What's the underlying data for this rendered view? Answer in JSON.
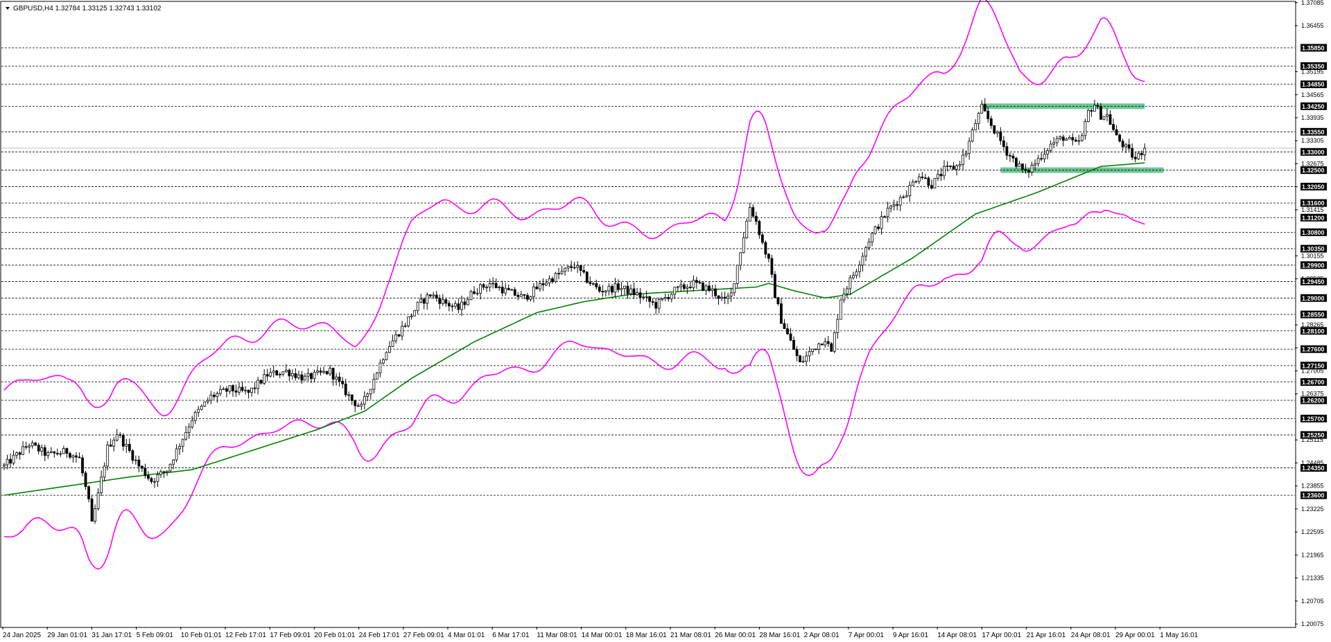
{
  "header": {
    "symbol_info": "GBPUSD,H4  1.32784 1.33125 1.32743 1.33102"
  },
  "colors": {
    "candles": "#000000",
    "bollinger": "#ff00ff",
    "moving_average": "#008000",
    "zone_fill": "#3cb371",
    "level_line": "#000000",
    "level_label_bg": "#000000",
    "current_price_line": "#c0c0c0"
  },
  "chart_data": {
    "type": "candlestick",
    "symbol": "GBPUSD",
    "timeframe": "H4",
    "ohlc_last": {
      "open": 1.32784,
      "high": 1.33125,
      "low": 1.32743,
      "close": 1.33102
    },
    "ylim": [
      1.2,
      1.3712
    ],
    "y_ticks": [
      "1.37085",
      "1.36455",
      "1.35195",
      "1.34565",
      "1.33935",
      "1.33305",
      "1.32675",
      "1.32045",
      "1.31415",
      "1.30155",
      "1.29525",
      "1.28265",
      "1.27635",
      "1.27005",
      "1.26375",
      "1.25115",
      "1.24485",
      "1.23855",
      "1.23225",
      "1.22595",
      "1.21965",
      "1.21335",
      "1.20705",
      "1.20075"
    ],
    "horizontal_levels": [
      "1.35850",
      "1.35350",
      "1.34850",
      "1.34250",
      "1.33550",
      "1.33000",
      "1.32500",
      "1.32050",
      "1.31600",
      "1.31200",
      "1.30800",
      "1.30350",
      "1.29900",
      "1.29450",
      "1.29000",
      "1.28550",
      "1.28100",
      "1.27600",
      "1.27150",
      "1.26700",
      "1.26200",
      "1.25700",
      "1.25250",
      "1.24350",
      "1.23600"
    ],
    "x_labels": [
      "24 Jan 2025",
      "29 Jan 01:01",
      "31 Jan 17:01",
      "5 Feb 09:01",
      "10 Feb 01:01",
      "12 Feb 17:01",
      "17 Feb 09:01",
      "20 Feb 01:01",
      "24 Feb 17:01",
      "27 Feb 09:01",
      "4 Mar 01:01",
      "6 Mar 17:01",
      "11 Mar 08:01",
      "14 Mar 00:01",
      "18 Mar 16:01",
      "21 Mar 08:01",
      "26 Mar 00:01",
      "28 Mar 16:01",
      "2 Apr 08:01",
      "7 Apr 00:01",
      "9 Apr 16:01",
      "14 Apr 08:01",
      "17 Apr 00:01",
      "21 Apr 16:01",
      "24 Apr 08:01",
      "29 Apr 00:01",
      "1 May 16:01"
    ],
    "price_path": [
      [
        0,
        1.244
      ],
      [
        8,
        1.25
      ],
      [
        14,
        1.247
      ],
      [
        20,
        1.248
      ],
      [
        24,
        1.246
      ],
      [
        27,
        1.234
      ],
      [
        28,
        1.228
      ],
      [
        30,
        1.236
      ],
      [
        33,
        1.249
      ],
      [
        36,
        1.253
      ],
      [
        40,
        1.248
      ],
      [
        43,
        1.244
      ],
      [
        47,
        1.24
      ],
      [
        52,
        1.243
      ],
      [
        56,
        1.25
      ],
      [
        60,
        1.257
      ],
      [
        66,
        1.263
      ],
      [
        72,
        1.265
      ],
      [
        78,
        1.264
      ],
      [
        84,
        1.269
      ],
      [
        90,
        1.27
      ],
      [
        96,
        1.268
      ],
      [
        104,
        1.27
      ],
      [
        111,
        1.262
      ],
      [
        114,
        1.26
      ],
      [
        118,
        1.268
      ],
      [
        122,
        1.276
      ],
      [
        128,
        1.283
      ],
      [
        132,
        1.288
      ],
      [
        136,
        1.291
      ],
      [
        140,
        1.289
      ],
      [
        145,
        1.287
      ],
      [
        150,
        1.292
      ],
      [
        155,
        1.294
      ],
      [
        160,
        1.292
      ],
      [
        166,
        1.29
      ],
      [
        172,
        1.294
      ],
      [
        178,
        1.297
      ],
      [
        182,
        1.299
      ],
      [
        186,
        1.295
      ],
      [
        190,
        1.292
      ],
      [
        196,
        1.293
      ],
      [
        202,
        1.291
      ],
      [
        208,
        1.288
      ],
      [
        214,
        1.292
      ],
      [
        220,
        1.294
      ],
      [
        226,
        1.292
      ],
      [
        230,
        1.289
      ],
      [
        232,
        1.291
      ],
      [
        236,
        1.307
      ],
      [
        238,
        1.315
      ],
      [
        240,
        1.311
      ],
      [
        242,
        1.305
      ],
      [
        244,
        1.3
      ],
      [
        246,
        1.291
      ],
      [
        248,
        1.284
      ],
      [
        251,
        1.278
      ],
      [
        254,
        1.272
      ],
      [
        258,
        1.276
      ],
      [
        262,
        1.279
      ],
      [
        264,
        1.275
      ],
      [
        267,
        1.29
      ],
      [
        272,
        1.298
      ],
      [
        276,
        1.306
      ],
      [
        282,
        1.314
      ],
      [
        288,
        1.319
      ],
      [
        292,
        1.324
      ],
      [
        296,
        1.321
      ],
      [
        300,
        1.325
      ],
      [
        304,
        1.326
      ],
      [
        307,
        1.33
      ],
      [
        310,
        1.338
      ],
      [
        312,
        1.342
      ],
      [
        314,
        1.339
      ],
      [
        316,
        1.336
      ],
      [
        320,
        1.33
      ],
      [
        324,
        1.326
      ],
      [
        326,
        1.324
      ],
      [
        330,
        1.328
      ],
      [
        334,
        1.332
      ],
      [
        338,
        1.334
      ],
      [
        342,
        1.332
      ],
      [
        344,
        1.334
      ],
      [
        346,
        1.341
      ],
      [
        348,
        1.343
      ],
      [
        350,
        1.34
      ],
      [
        352,
        1.34
      ],
      [
        355,
        1.334
      ],
      [
        358,
        1.331
      ],
      [
        361,
        1.328
      ],
      [
        364,
        1.331
      ]
    ],
    "ma_path": [
      [
        0,
        1.236
      ],
      [
        40,
        1.241
      ],
      [
        60,
        1.243
      ],
      [
        100,
        1.254
      ],
      [
        115,
        1.259
      ],
      [
        130,
        1.268
      ],
      [
        150,
        1.278
      ],
      [
        170,
        1.286
      ],
      [
        185,
        1.289
      ],
      [
        200,
        1.291
      ],
      [
        220,
        1.292
      ],
      [
        240,
        1.293
      ],
      [
        244,
        1.294
      ],
      [
        252,
        1.292
      ],
      [
        262,
        1.29
      ],
      [
        270,
        1.291
      ],
      [
        290,
        1.301
      ],
      [
        310,
        1.313
      ],
      [
        330,
        1.319
      ],
      [
        350,
        1.326
      ],
      [
        364,
        1.327
      ]
    ],
    "band_width_path": [
      [
        0,
        0.02
      ],
      [
        20,
        0.02
      ],
      [
        27,
        0.022
      ],
      [
        34,
        0.02
      ],
      [
        50,
        0.017
      ],
      [
        58,
        0.016
      ],
      [
        70,
        0.014
      ],
      [
        90,
        0.014
      ],
      [
        104,
        0.013
      ],
      [
        112,
        0.013
      ],
      [
        122,
        0.022
      ],
      [
        130,
        0.027
      ],
      [
        140,
        0.027
      ],
      [
        160,
        0.022
      ],
      [
        185,
        0.019
      ],
      [
        200,
        0.017
      ],
      [
        220,
        0.019
      ],
      [
        230,
        0.02
      ],
      [
        238,
        0.033
      ],
      [
        244,
        0.03
      ],
      [
        250,
        0.032
      ],
      [
        258,
        0.033
      ],
      [
        264,
        0.033
      ],
      [
        276,
        0.028
      ],
      [
        300,
        0.028
      ],
      [
        312,
        0.035
      ],
      [
        324,
        0.023
      ],
      [
        340,
        0.022
      ],
      [
        350,
        0.026
      ],
      [
        364,
        0.019
      ]
    ],
    "support_resistance_zones": [
      {
        "price": 1.3425,
        "from_bar": 312,
        "to_bar": 364
      },
      {
        "price": 1.325,
        "from_bar": 318,
        "to_bar": 370
      }
    ],
    "grid": false,
    "legend": "none"
  }
}
